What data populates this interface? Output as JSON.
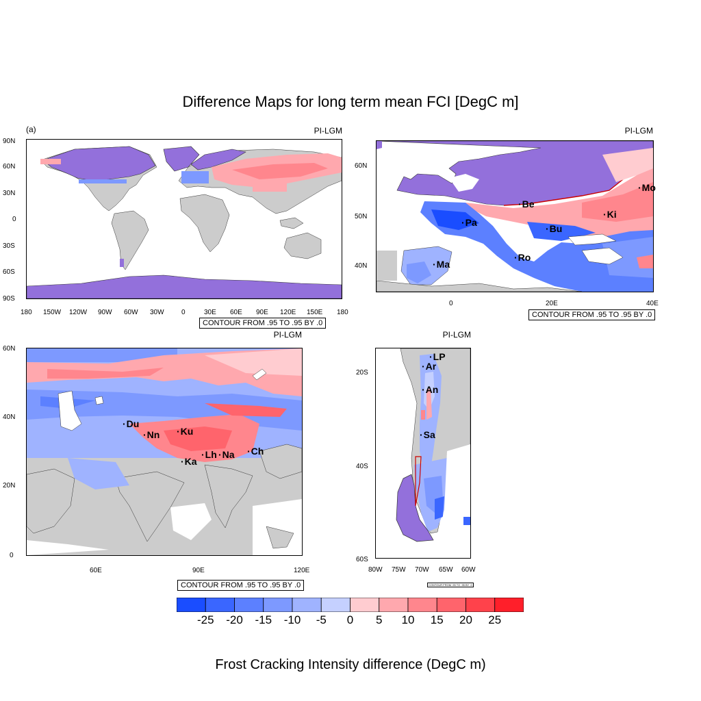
{
  "title": "Difference Maps for long term mean FCI [DegC m]",
  "footer": "Frost Cracking Intensity difference (DegC m)",
  "colors": {
    "land": "#cccccc",
    "ice": "#9370db",
    "neg_scale": [
      "#1a4dff",
      "#3a66ff",
      "#5c80ff",
      "#7d99ff",
      "#9fb3ff",
      "#c5d0ff"
    ],
    "pos_scale": [
      "#ffccd0",
      "#ffa8ae",
      "#ff868d",
      "#ff646c",
      "#ff424b",
      "#ff1f2a"
    ]
  },
  "panels": {
    "global": {
      "tag": "(a)",
      "label": "PI-LGM",
      "contour": "CONTOUR FROM .95 TO .95 BY .0",
      "yticks": [
        "90N",
        "60N",
        "30N",
        "0",
        "30S",
        "60S",
        "90S"
      ],
      "xticks": [
        "180",
        "150W",
        "120W",
        "90W",
        "60W",
        "30W",
        "0",
        "30E",
        "60E",
        "90E",
        "120E",
        "150E",
        "180"
      ]
    },
    "europe": {
      "label": "PI-LGM",
      "contour": "CONTOUR FROM .95 TO .95 BY .0",
      "yticks": [
        "60N",
        "50N",
        "40N"
      ],
      "xticks": [
        "0",
        "20E",
        "40E"
      ],
      "cities": [
        "Be",
        "Mo",
        "Ki",
        "Pa",
        "Bu",
        "Ma",
        "Ro"
      ]
    },
    "asia": {
      "label": "PI-LGM",
      "contour": "CONTOUR FROM .95 TO .95 BY .0",
      "yticks": [
        "60N",
        "40N",
        "20N",
        "0"
      ],
      "xticks": [
        "60E",
        "90E",
        "120E"
      ],
      "cities": [
        "Du",
        "Nn",
        "Ku",
        "Lh",
        "Na",
        "Ch",
        "Ka"
      ]
    },
    "andes": {
      "label": "PI-LGM",
      "contour": "CONTOUR FROM .95 TO .95 BY .0",
      "yticks": [
        "20S",
        "40S",
        "60S"
      ],
      "xticks": [
        "80W",
        "75W",
        "70W",
        "65W",
        "60W"
      ],
      "cities": [
        "LP",
        "Ar",
        "An",
        "Sa"
      ]
    }
  },
  "colorbar": {
    "labels": [
      "-25",
      "-20",
      "-15",
      "-10",
      "-5",
      "0",
      "5",
      "10",
      "15",
      "20",
      "25"
    ]
  }
}
